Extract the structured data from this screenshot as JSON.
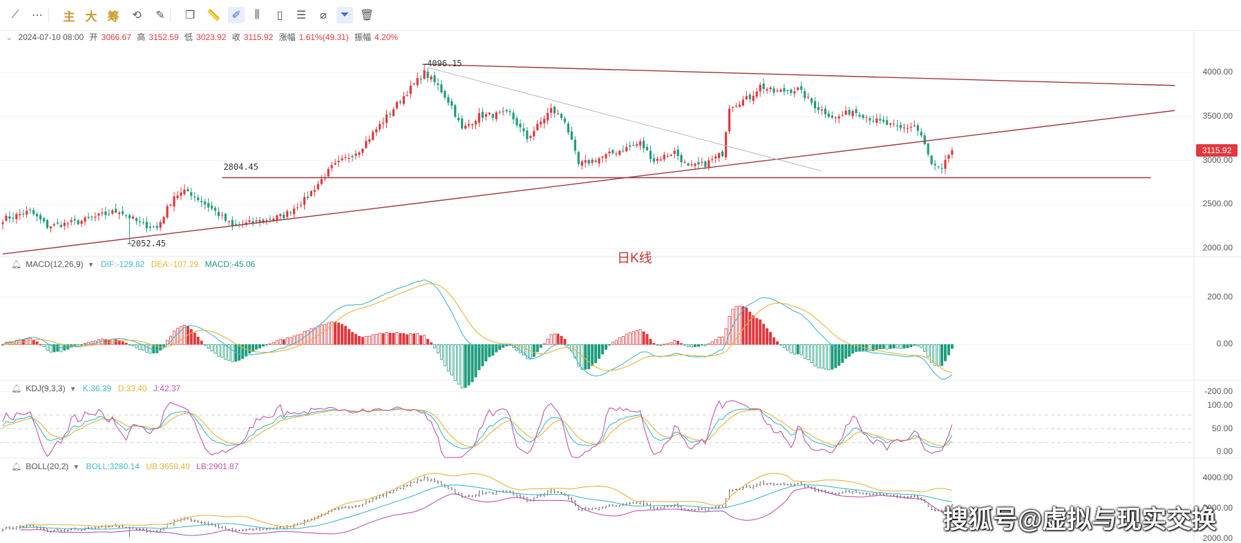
{
  "toolbar": {
    "items": [
      {
        "icon": "trend-line-icon",
        "glyph": "⟋"
      },
      {
        "icon": "more-dots-icon",
        "glyph": "⋯"
      },
      {
        "icon": "main-chip-label",
        "text": "主"
      },
      {
        "icon": "large-chip-label",
        "text": "大"
      },
      {
        "icon": "chip-distribution-label",
        "text": "筹"
      },
      {
        "icon": "replay-icon",
        "glyph": "⟲"
      },
      {
        "icon": "draw-settings-icon",
        "glyph": "✎"
      },
      {
        "icon": "copy-icon",
        "glyph": "❐"
      },
      {
        "icon": "ruler-icon",
        "glyph": "📏"
      },
      {
        "icon": "brush-icon",
        "glyph": "✐"
      },
      {
        "icon": "candlestick-icon",
        "glyph": "⫼"
      },
      {
        "icon": "single-candle-icon",
        "glyph": "▯"
      },
      {
        "icon": "note-icon",
        "glyph": "☰"
      },
      {
        "icon": "magnet-icon",
        "glyph": "⌀"
      },
      {
        "icon": "filter-icon",
        "glyph": "⏷"
      },
      {
        "icon": "trash-icon",
        "glyph": "🗑"
      }
    ]
  },
  "ohlc": {
    "date": "2024-07-10 08:00",
    "open_label": "开",
    "open": "3066.67",
    "high_label": "高",
    "high": "3152.59",
    "low_label": "低",
    "low": "3023.92",
    "close_label": "收",
    "close": "3115.92",
    "change_label": "涨幅",
    "change": "1.61%(49.31)",
    "amplitude_label": "振幅",
    "amplitude": "4.20%"
  },
  "macd_legend": {
    "name": "MACD(12,26,9)",
    "dif": "DIF:-129.82",
    "dea": "DEA:-107.29",
    "macd": "MACD:-45.06"
  },
  "kdj_legend": {
    "name": "KDJ(9,3,3)",
    "k": "K:36.39",
    "d": "D:33.40",
    "j": "J:42.37"
  },
  "boll_legend": {
    "name": "BOLL(20,2)",
    "boll": "BOLL:3280.14",
    "ub": "UB:3658.40",
    "lb": "LB:2901.87"
  },
  "annotations": {
    "high": "4096.15",
    "low": "2052.45",
    "support": "2804.45"
  },
  "caption": "日K线",
  "watermark": "搜狐号@虚拟与现实交换",
  "last_price_tag": "3115.92",
  "colors": {
    "up": "#e0383e",
    "down": "#1f9c7c",
    "dif": "#40b8c8",
    "dea": "#e8b23a",
    "k": "#40b8c8",
    "d": "#e8b23a",
    "j": "#c054b0",
    "boll": "#40b8c8",
    "ub": "#e8b23a",
    "lb": "#c054b0",
    "trendline": "#a0343c"
  },
  "chart_data": {
    "type": "candlestick",
    "price_axis": {
      "ticks": [
        4000,
        3500,
        3000,
        2500,
        2000
      ],
      "tick_labels": [
        "4000.00",
        "3500.00",
        "3000.00",
        "2500.00",
        "2000.00"
      ],
      "range": [
        1920,
        4200
      ]
    },
    "macd_axis": {
      "ticks": [
        200,
        0,
        -200
      ],
      "tick_labels": [
        "200.00",
        "0.00",
        "-200.00"
      ],
      "range": [
        -230,
        290
      ]
    },
    "kdj_axis": {
      "ticks": [
        100,
        50,
        0
      ],
      "tick_labels": [
        "100.00",
        "50.00",
        "0.00"
      ],
      "range": [
        -15,
        115
      ]
    },
    "boll_axis": {
      "ticks": [
        4000,
        3000,
        2000
      ],
      "tick_labels": [
        "4000.00",
        "3000.00",
        "2000.00"
      ],
      "range": [
        1900,
        4250
      ]
    },
    "anchors": [
      {
        "i": 0,
        "p": 2330
      },
      {
        "i": 8,
        "p": 2420
      },
      {
        "i": 13,
        "p": 2250
      },
      {
        "i": 22,
        "p": 2300
      },
      {
        "i": 34,
        "p": 2430
      },
      {
        "i": 40,
        "p": 2280
      },
      {
        "i": 45,
        "p": 2230
      },
      {
        "i": 50,
        "p": 2600
      },
      {
        "i": 54,
        "p": 2650
      },
      {
        "i": 62,
        "p": 2420
      },
      {
        "i": 67,
        "p": 2250
      },
      {
        "i": 75,
        "p": 2310
      },
      {
        "i": 82,
        "p": 2370
      },
      {
        "i": 88,
        "p": 2550
      },
      {
        "i": 96,
        "p": 2920
      },
      {
        "i": 104,
        "p": 3120
      },
      {
        "i": 111,
        "p": 3450
      },
      {
        "i": 118,
        "p": 3780
      },
      {
        "i": 123,
        "p": 4000
      },
      {
        "i": 127,
        "p": 3850
      },
      {
        "i": 131,
        "p": 3620
      },
      {
        "i": 134,
        "p": 3350
      },
      {
        "i": 139,
        "p": 3510
      },
      {
        "i": 148,
        "p": 3530
      },
      {
        "i": 153,
        "p": 3250
      },
      {
        "i": 160,
        "p": 3580
      },
      {
        "i": 164,
        "p": 3460
      },
      {
        "i": 168,
        "p": 2950
      },
      {
        "i": 173,
        "p": 3010
      },
      {
        "i": 179,
        "p": 3100
      },
      {
        "i": 186,
        "p": 3200
      },
      {
        "i": 190,
        "p": 3000
      },
      {
        "i": 196,
        "p": 3100
      },
      {
        "i": 200,
        "p": 2920
      },
      {
        "i": 205,
        "p": 2960
      },
      {
        "i": 210,
        "p": 3080
      },
      {
        "i": 212,
        "p": 3620
      },
      {
        "i": 218,
        "p": 3720
      },
      {
        "i": 221,
        "p": 3850
      },
      {
        "i": 225,
        "p": 3780
      },
      {
        "i": 232,
        "p": 3810
      },
      {
        "i": 237,
        "p": 3620
      },
      {
        "i": 243,
        "p": 3480
      },
      {
        "i": 248,
        "p": 3570
      },
      {
        "i": 255,
        "p": 3450
      },
      {
        "i": 262,
        "p": 3360
      },
      {
        "i": 266,
        "p": 3400
      },
      {
        "i": 268,
        "p": 3280
      },
      {
        "i": 271,
        "p": 2950
      },
      {
        "i": 274,
        "p": 2880
      },
      {
        "i": 276,
        "p": 3066
      },
      {
        "i": 277,
        "p": 3116
      }
    ],
    "lines": [
      {
        "name": "top",
        "from": {
          "i": 123,
          "p": 4096.15
        },
        "to": {
          "i": 342,
          "p": 3855
        }
      },
      {
        "name": "bottom",
        "from": {
          "i": 0,
          "p": 1935
        },
        "to": {
          "i": 342,
          "p": 3570
        }
      },
      {
        "name": "support",
        "from": {
          "i": 64,
          "p": 2804.45
        },
        "to": {
          "i": 335,
          "p": 2804.45
        }
      },
      {
        "name": "thin",
        "from": {
          "i": 124,
          "p": 4060
        },
        "to": {
          "i": 239,
          "p": 2880
        }
      }
    ],
    "high_point": {
      "i": 123,
      "p": 4096.15
    },
    "low_point": {
      "i": 37,
      "p": 2052.45
    },
    "last": {
      "open": 3066.67,
      "high": 3152.59,
      "low": 3023.92,
      "close": 3115.92
    }
  }
}
